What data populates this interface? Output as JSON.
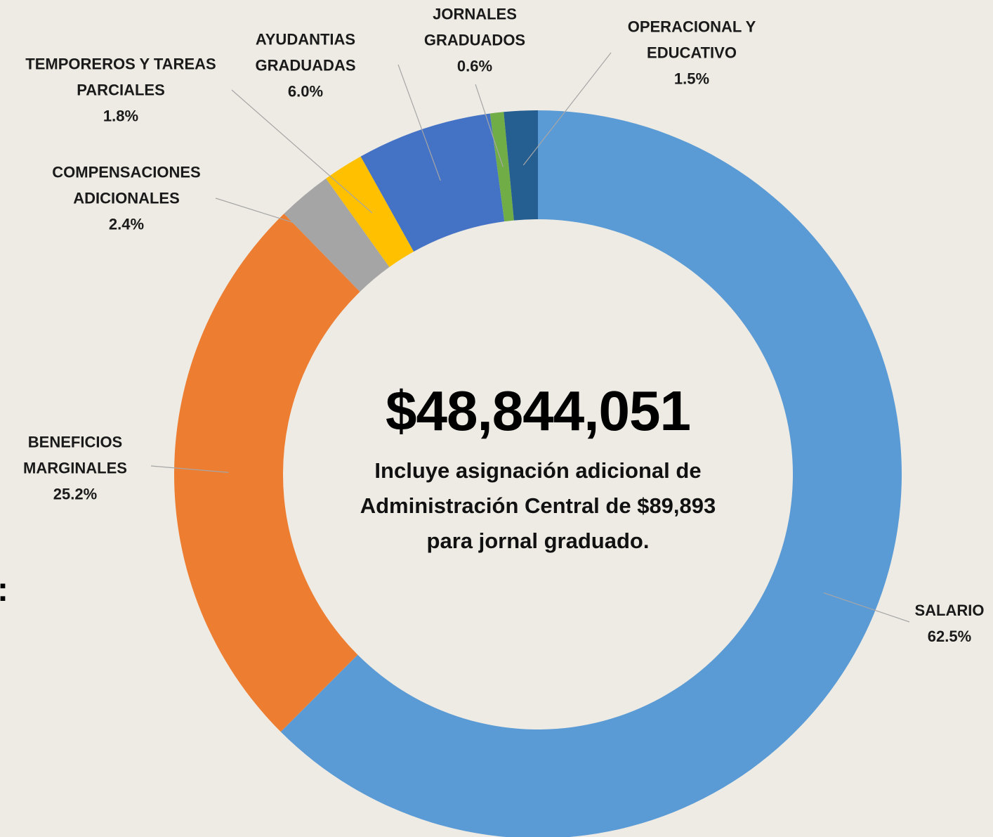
{
  "chart_data": {
    "type": "donut",
    "center_label": "$48,844,051",
    "annotation": "Incluye asignación adicional de Administración Central de $89,893 para jornal graduado.",
    "cut_text": ":",
    "categories": [
      "SALARIO",
      "BENEFICIOS MARGINALES",
      "COMPENSACIONES ADICIONALES",
      "TEMPOREROS Y TAREAS PARCIALES",
      "AYUDANTIAS GRADUADAS",
      "JORNALES GRADUADOS",
      "OPERACIONAL Y EDUCATIVO"
    ],
    "values": [
      62.5,
      25.2,
      2.4,
      1.8,
      6.0,
      0.6,
      1.5
    ],
    "value_labels": [
      "62.5%",
      "25.2%",
      "2.4%",
      "1.8%",
      "6.0%",
      "0.6%",
      "1.5%"
    ],
    "colors": [
      "#5b9bd5",
      "#ed7d31",
      "#a5a5a5",
      "#ffc000",
      "#4472c4",
      "#70ad47",
      "#255e91"
    ]
  }
}
